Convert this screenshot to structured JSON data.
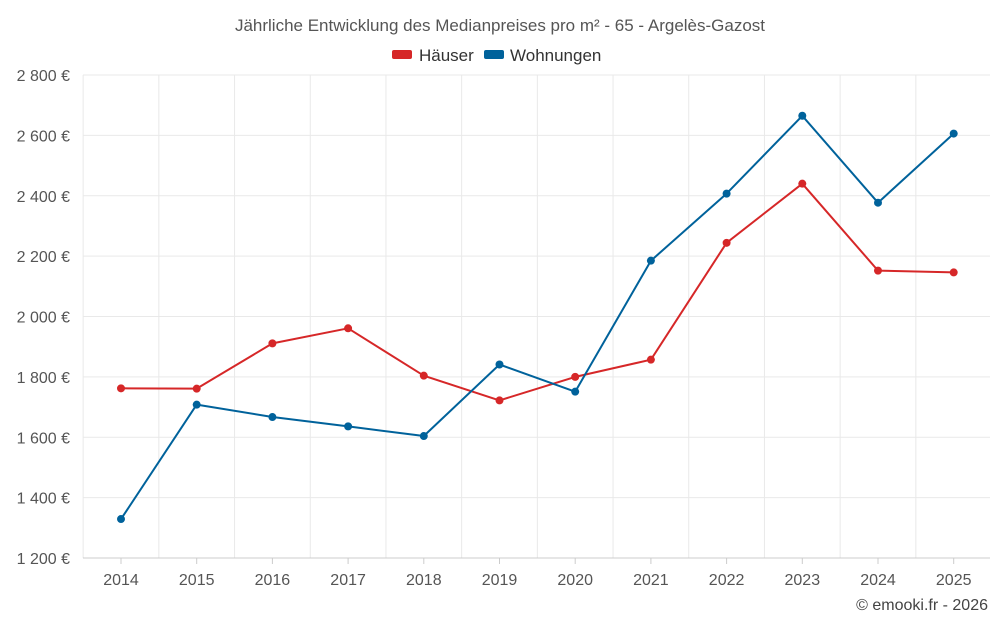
{
  "chart_data": {
    "type": "line",
    "title": "Jährliche Entwicklung des Medianpreises pro m² - 65 - Argelès-Gazost",
    "categories": [
      "2014",
      "2015",
      "2016",
      "2017",
      "2018",
      "2019",
      "2020",
      "2021",
      "2022",
      "2023",
      "2024",
      "2025"
    ],
    "series": [
      {
        "name": "Häuser",
        "color": "#d62728",
        "values": [
          1762,
          1761,
          1911,
          1961,
          1804,
          1722,
          1800,
          1857,
          2244,
          2440,
          2152,
          2146
        ]
      },
      {
        "name": "Wohnungen",
        "color": "#00629b",
        "values": [
          1329,
          1708,
          1667,
          1636,
          1604,
          1841,
          1751,
          2185,
          2407,
          2665,
          2377,
          2606
        ]
      }
    ],
    "ylim": [
      1200,
      2800
    ],
    "yticks": [
      1200,
      1400,
      1600,
      1800,
      2000,
      2200,
      2400,
      2600,
      2800
    ],
    "ytick_labels": [
      "1 200 €",
      "1 400 €",
      "1 600 €",
      "1 800 €",
      "2 000 €",
      "2 200 €",
      "2 400 €",
      "2 600 €",
      "2 800 €"
    ],
    "xlabel": "",
    "ylabel": "",
    "grid": true,
    "legend_position": "top-center",
    "credit": "© emooki.fr - 2026"
  }
}
